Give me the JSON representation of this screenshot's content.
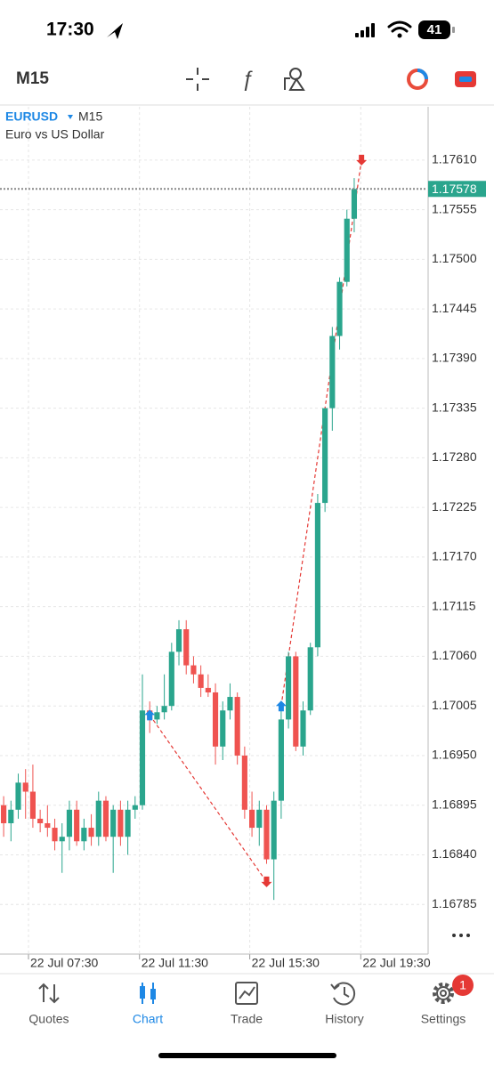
{
  "status_bar": {
    "time": "17:30",
    "battery": "41"
  },
  "toolbar": {
    "timeframe": "M15"
  },
  "chart_data": {
    "type": "candlestick",
    "symbol": "EURUSD",
    "timeframe": "M15",
    "description": "Euro vs US Dollar",
    "up_color": "#2aa58d",
    "down_color": "#ef5350",
    "grid": true,
    "open": [
      1.16895,
      1.16875,
      1.1689,
      1.1692,
      1.1691,
      1.1688,
      1.16875,
      1.1687,
      1.16855,
      1.1686,
      1.1689,
      1.16855,
      1.1687,
      1.1686,
      1.169,
      1.1686,
      1.1689,
      1.1686,
      1.1689,
      1.16895,
      1.17,
      1.1699,
      1.16998,
      1.17005,
      1.17065,
      1.1709,
      1.1705,
      1.1704,
      1.17025,
      1.1702,
      1.1696,
      1.17,
      1.17015,
      1.1695,
      1.1689,
      1.1687,
      1.1689,
      1.16835,
      1.169,
      1.1699,
      1.1706,
      1.1696,
      1.17,
      1.1707,
      1.1723,
      1.17335,
      1.17415,
      1.17475,
      1.17545
    ],
    "high": [
      1.16905,
      1.169,
      1.1693,
      1.16935,
      1.1694,
      1.1689,
      1.16895,
      1.1688,
      1.16875,
      1.169,
      1.169,
      1.1688,
      1.16885,
      1.1691,
      1.16905,
      1.16895,
      1.169,
      1.169,
      1.16905,
      1.1704,
      1.1701,
      1.17005,
      1.1704,
      1.17075,
      1.171,
      1.171,
      1.1706,
      1.1705,
      1.1704,
      1.1703,
      1.1701,
      1.1703,
      1.1702,
      1.1696,
      1.1691,
      1.169,
      1.16895,
      1.1691,
      1.17,
      1.17065,
      1.17065,
      1.1701,
      1.17075,
      1.1724,
      1.1733,
      1.17425,
      1.1748,
      1.17555,
      1.1759
    ],
    "low": [
      1.1686,
      1.16855,
      1.1688,
      1.1688,
      1.1687,
      1.16865,
      1.1686,
      1.16845,
      1.1682,
      1.16845,
      1.1685,
      1.16845,
      1.1685,
      1.1685,
      1.16855,
      1.1682,
      1.1685,
      1.1684,
      1.1688,
      1.1689,
      1.16975,
      1.16985,
      1.1699,
      1.17,
      1.1705,
      1.1704,
      1.1703,
      1.17015,
      1.17015,
      1.1694,
      1.16945,
      1.1699,
      1.1694,
      1.1688,
      1.1686,
      1.1685,
      1.1683,
      1.1679,
      1.1688,
      1.1698,
      1.16955,
      1.1695,
      1.16995,
      1.1706,
      1.1722,
      1.1731,
      1.174,
      1.1747,
      1.1753
    ],
    "close": [
      1.16875,
      1.1689,
      1.1692,
      1.1691,
      1.1688,
      1.16875,
      1.1687,
      1.16855,
      1.1686,
      1.1689,
      1.16855,
      1.1687,
      1.1686,
      1.169,
      1.1686,
      1.1689,
      1.1686,
      1.1689,
      1.16895,
      1.17,
      1.1699,
      1.16998,
      1.17005,
      1.17065,
      1.1709,
      1.1705,
      1.1704,
      1.17025,
      1.1702,
      1.1696,
      1.17,
      1.17015,
      1.1695,
      1.1689,
      1.1687,
      1.1689,
      1.16835,
      1.169,
      1.1699,
      1.1706,
      1.1696,
      1.17,
      1.1707,
      1.1723,
      1.17335,
      1.17415,
      1.17475,
      1.17545,
      1.17578
    ],
    "current_price": 1.17578,
    "trades": [
      {
        "open_candle": 20,
        "open_price": 1.16995,
        "close_candle": 36,
        "close_price": 1.1681
      },
      {
        "open_candle": 38,
        "open_price": 1.17005,
        "close_candle": 49,
        "close_price": 1.1761
      }
    ],
    "xlim": [
      -0.5,
      58
    ],
    "xticks": [
      {
        "value": 3.4,
        "label": "22 Jul 07:30"
      },
      {
        "value": 18.6,
        "label": "22 Jul 11:30"
      },
      {
        "value": 33.7,
        "label": "22 Jul 15:30"
      },
      {
        "value": 48.9,
        "label": "22 Jul 19:30"
      }
    ],
    "ylim": [
      1.1673,
      1.17669
    ],
    "yticks": [
      {
        "value": 1.1761,
        "label": "1.17610"
      },
      {
        "value": 1.17555,
        "label": "1.17555"
      },
      {
        "value": 1.175,
        "label": "1.17500"
      },
      {
        "value": 1.17445,
        "label": "1.17445"
      },
      {
        "value": 1.1739,
        "label": "1.17390"
      },
      {
        "value": 1.17335,
        "label": "1.17335"
      },
      {
        "value": 1.1728,
        "label": "1.17280"
      },
      {
        "value": 1.17225,
        "label": "1.17225"
      },
      {
        "value": 1.1717,
        "label": "1.17170"
      },
      {
        "value": 1.17115,
        "label": "1.17115"
      },
      {
        "value": 1.1706,
        "label": "1.17060"
      },
      {
        "value": 1.17005,
        "label": "1.17005"
      },
      {
        "value": 1.1695,
        "label": "1.16950"
      },
      {
        "value": 1.16895,
        "label": "1.16895"
      },
      {
        "value": 1.1684,
        "label": "1.16840"
      },
      {
        "value": 1.16785,
        "label": "1.16785"
      }
    ]
  },
  "tab_bar": {
    "tabs": [
      "Quotes",
      "Chart",
      "Trade",
      "History",
      "Settings"
    ],
    "active": 1,
    "settings_badge": 1
  }
}
